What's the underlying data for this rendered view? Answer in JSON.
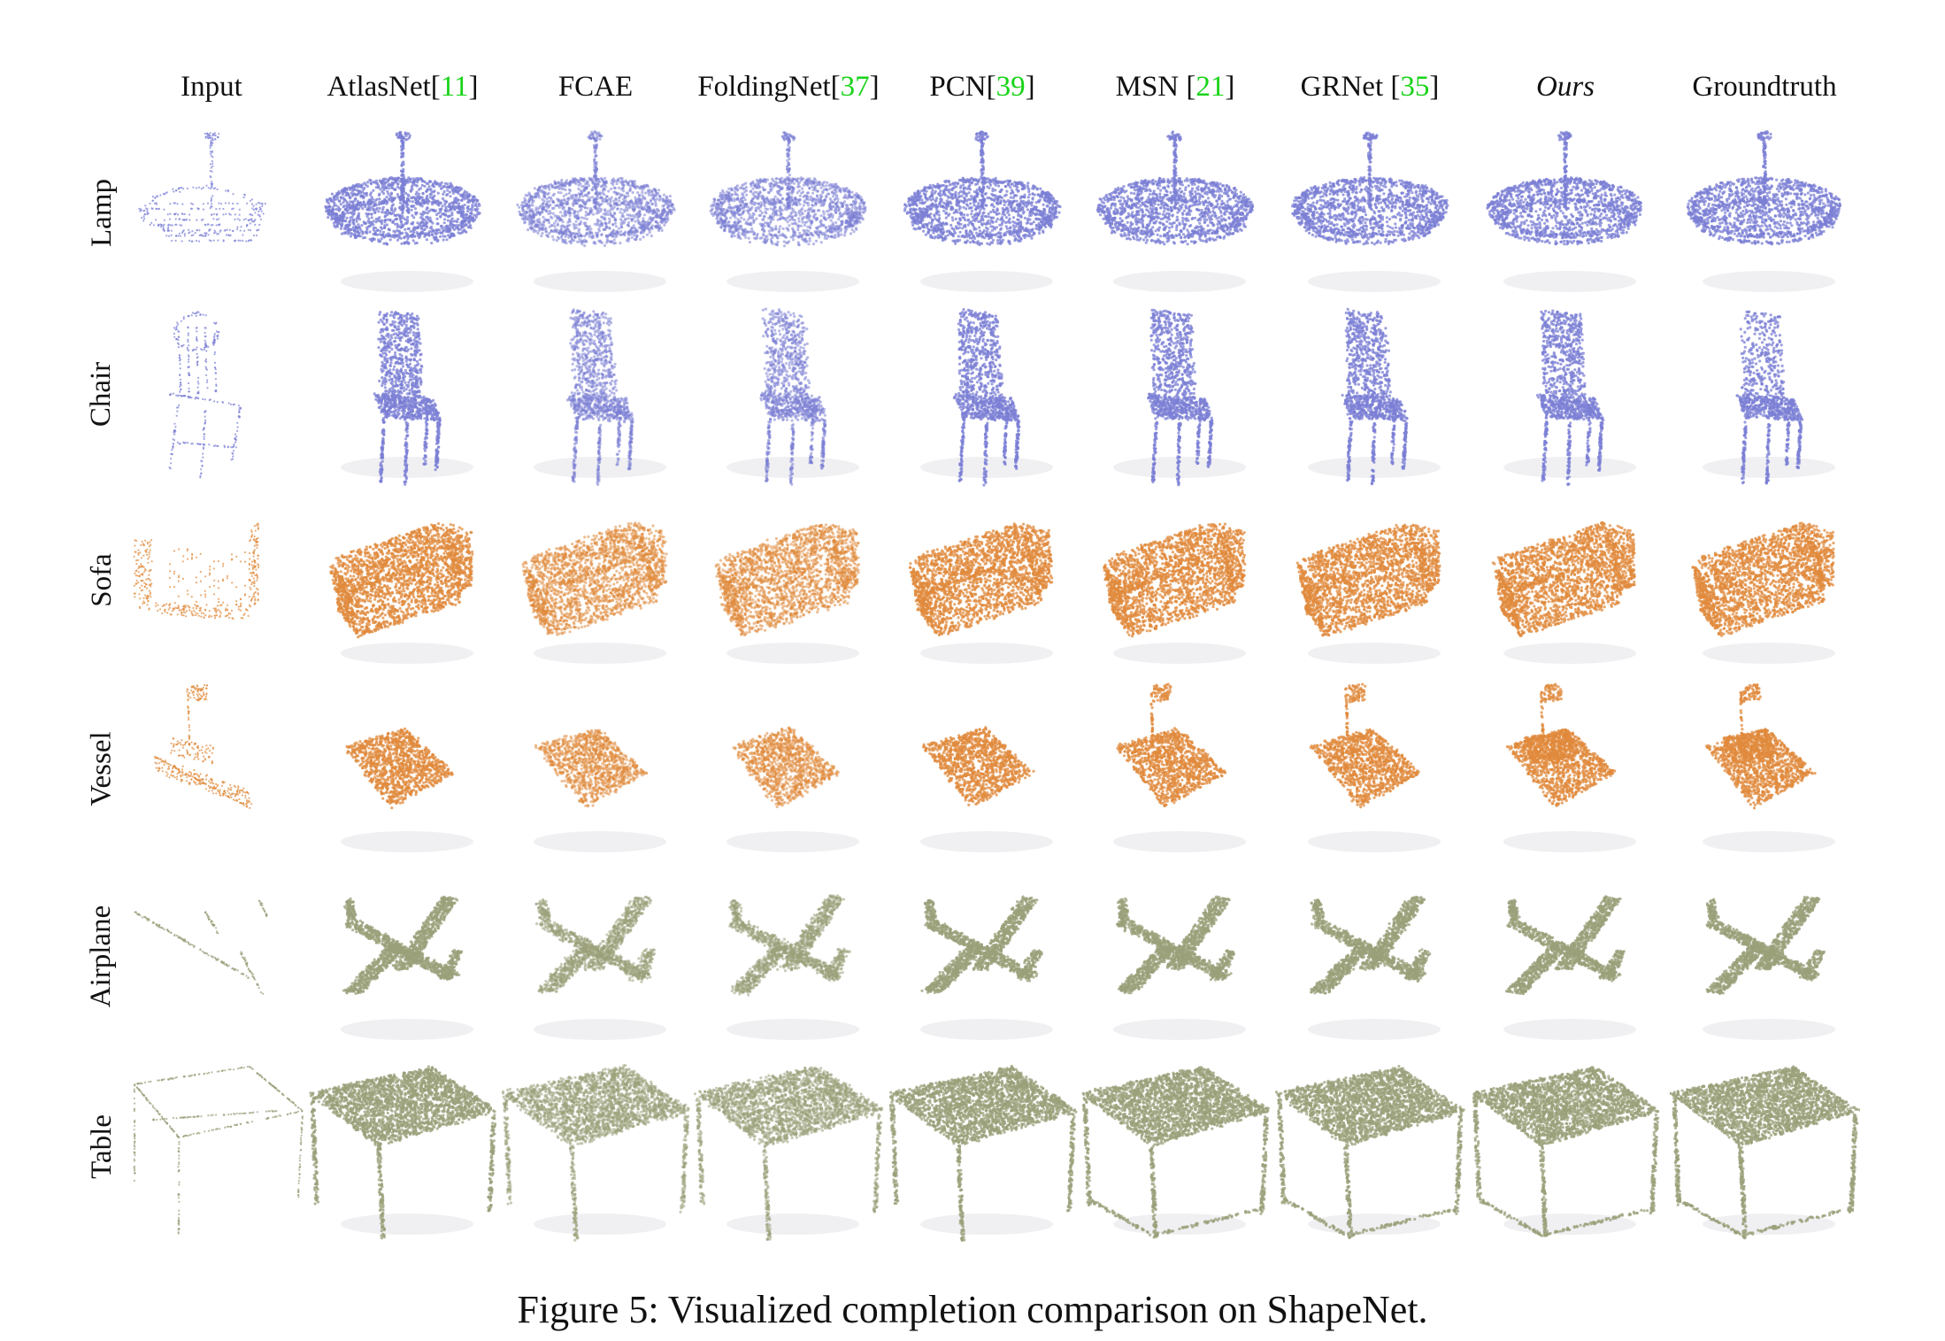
{
  "columns": [
    {
      "label": "Input",
      "cite": "",
      "close": "",
      "italic": false
    },
    {
      "label": "AtlasNet[",
      "cite": "11",
      "close": "]",
      "italic": false
    },
    {
      "label": "FCAE",
      "cite": "",
      "close": "",
      "italic": false
    },
    {
      "label": "FoldingNet[",
      "cite": "37",
      "close": "]",
      "italic": false
    },
    {
      "label": "PCN[",
      "cite": "39",
      "close": "]",
      "italic": false
    },
    {
      "label": "MSN [",
      "cite": "21",
      "close": "]",
      "italic": false
    },
    {
      "label": "GRNet [",
      "cite": "35",
      "close": "]",
      "italic": false
    },
    {
      "label": "Ours",
      "cite": "",
      "close": "",
      "italic": true
    },
    {
      "label": "Groundtruth",
      "cite": "",
      "close": "",
      "italic": false
    }
  ],
  "rows": [
    {
      "label": "Lamp",
      "shape": "lamp",
      "color": "#7b7fd4"
    },
    {
      "label": "Chair",
      "shape": "chair",
      "color": "#7b7fd4"
    },
    {
      "label": "Sofa",
      "shape": "sofa",
      "color": "#e08a3c"
    },
    {
      "label": "Vessel",
      "shape": "vessel",
      "color": "#e08a3c"
    },
    {
      "label": "Airplane",
      "shape": "airplane",
      "color": "#9aa07a"
    },
    {
      "label": "Table",
      "shape": "table",
      "color": "#9aa07a"
    }
  ],
  "caption": "Figure 5: Visualized completion comparison on ShapeNet."
}
